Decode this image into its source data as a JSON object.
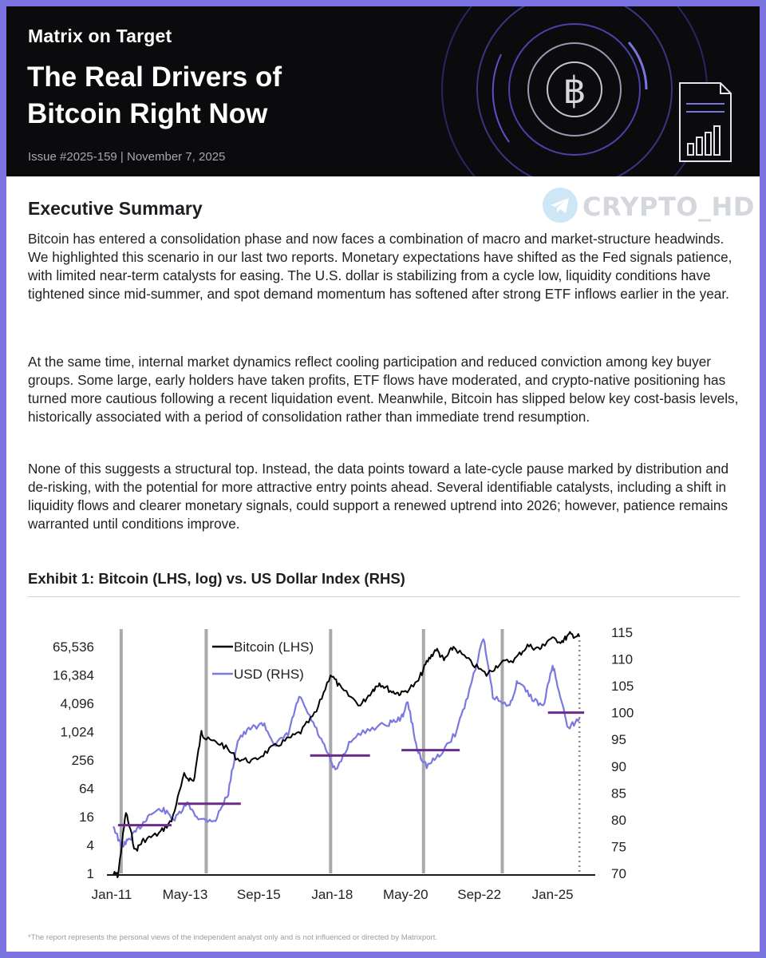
{
  "header": {
    "kicker": "Matrix on Target",
    "title_line1": "The Real Drivers of",
    "title_line2": "Bitcoin Right Now",
    "issue": "Issue #2025-159 | November 7, 2025",
    "bitcoin_symbol": "฿",
    "icon": "report-chart-icon"
  },
  "watermark": {
    "text": "CRYPTO_HD",
    "icon": "telegram-icon"
  },
  "summary": {
    "title": "Executive Summary",
    "p1": "Bitcoin has entered a consolidation phase and now faces a combination of macro and market-structure headwinds. We highlighted this scenario in our last two reports. Monetary expectations have shifted as the Fed signals patience, with limited near-term catalysts for easing. The U.S. dollar is stabilizing from a cycle low, liquidity conditions have tightened since mid-summer, and spot demand momentum has softened after strong ETF inflows earlier in the year.",
    "p2": "At the same time, internal market dynamics reflect cooling participation and reduced conviction among key buyer groups. Some large, early holders have taken profits, ETF flows have moderated, and crypto-native positioning has turned more cautious following a recent liquidation event. Meanwhile, Bitcoin has slipped below key cost-basis levels, historically associated with a period of consolidation rather than immediate trend resumption.",
    "p3": "None of this suggests a structural top. Instead, the data points toward a late-cycle pause marked by distribution and de-risking, with the potential for more attractive entry points ahead. Several identifiable catalysts, including a shift in liquidity flows and clearer monetary signals, could support a renewed uptrend into 2026; however, patience remains warranted until conditions improve."
  },
  "exhibit": {
    "title": "Exhibit 1: Bitcoin (LHS, log) vs. US Dollar Index (RHS)"
  },
  "chart_data": {
    "type": "line",
    "title": "Exhibit 1: Bitcoin (LHS, log) vs. US Dollar Index (RHS)",
    "x_ticks": [
      "Jan-11",
      "May-13",
      "Sep-15",
      "Jan-18",
      "May-20",
      "Sep-22",
      "Jan-25"
    ],
    "xlim": [
      2011.0,
      2026.2
    ],
    "y_left": {
      "scale": "log2",
      "ticks": [
        "1",
        "4",
        "16",
        "64",
        "256",
        "1,024",
        "4,096",
        "16,384",
        "65,536"
      ],
      "range": [
        1,
        131072
      ]
    },
    "y_right": {
      "ticks": [
        "70",
        "75",
        "80",
        "85",
        "90",
        "95",
        "100",
        "105",
        "110",
        "115"
      ],
      "range": [
        70,
        115
      ]
    },
    "colors": {
      "bitcoin": "#000000",
      "usd": "#7b78e0",
      "level": "#6b2b8a",
      "vline": "#a9a9ad"
    },
    "vertical_lines": [
      2011.3,
      2014.0,
      2017.95,
      2020.9,
      2023.4
    ],
    "dotted_line": 2025.85,
    "series": [
      {
        "name": "Bitcoin (LHS)",
        "axis": "left",
        "x": [
          2011.05,
          2011.2,
          2011.45,
          2011.75,
          2012.0,
          2012.5,
          2012.9,
          2013.3,
          2013.6,
          2013.85,
          2014.0,
          2014.5,
          2015.0,
          2015.5,
          2016.0,
          2016.5,
          2017.0,
          2017.5,
          2017.95,
          2018.3,
          2018.9,
          2019.3,
          2019.5,
          2019.9,
          2020.2,
          2020.7,
          2021.0,
          2021.3,
          2021.55,
          2021.85,
          2022.4,
          2022.9,
          2023.3,
          2023.8,
          2024.2,
          2024.6,
          2024.9,
          2025.3,
          2025.55,
          2025.85
        ],
        "y": [
          1,
          0.9,
          20,
          3,
          5,
          7,
          13,
          120,
          90,
          1000,
          700,
          550,
          270,
          240,
          420,
          650,
          1000,
          2700,
          17000,
          8000,
          3700,
          8000,
          11000,
          7200,
          6500,
          11000,
          30000,
          58000,
          33000,
          64000,
          30000,
          16500,
          28000,
          35000,
          68000,
          58000,
          95000,
          85000,
          118000,
          105000
        ]
      },
      {
        "name": "USD (RHS)",
        "axis": "right",
        "x": [
          2011.05,
          2011.3,
          2011.5,
          2011.8,
          2012.2,
          2012.6,
          2013.0,
          2013.4,
          2013.8,
          2014.3,
          2014.7,
          2015.0,
          2015.4,
          2015.8,
          2016.2,
          2016.6,
          2016.95,
          2017.4,
          2017.8,
          2018.1,
          2018.6,
          2019.2,
          2019.8,
          2020.2,
          2020.4,
          2020.7,
          2021.0,
          2021.4,
          2021.9,
          2022.3,
          2022.8,
          2023.1,
          2023.6,
          2023.9,
          2024.3,
          2024.7,
          2025.0,
          2025.2,
          2025.5,
          2025.85
        ],
        "y": [
          79,
          75,
          76,
          78,
          81,
          82,
          80,
          83,
          80,
          80,
          85,
          95,
          97,
          98,
          94,
          96,
          103,
          98,
          93,
          89,
          95,
          97,
          98,
          99,
          102,
          93,
          90,
          92,
          96,
          103,
          114,
          103,
          101,
          106,
          103,
          101,
          109,
          104,
          97,
          99
        ]
      }
    ],
    "usd_levels": [
      {
        "x0": 2011.2,
        "x1": 2012.9,
        "value": 79
      },
      {
        "x0": 2013.1,
        "x1": 2015.1,
        "value": 83
      },
      {
        "x0": 2017.3,
        "x1": 2019.2,
        "value": 92
      },
      {
        "x0": 2020.2,
        "x1": 2022.05,
        "value": 93
      },
      {
        "x0": 2024.85,
        "x1": 2026.0,
        "value": 100
      }
    ]
  },
  "footnote": "*The report represents the personal views of the independent analyst only and is not influenced or directed by Matrixport."
}
